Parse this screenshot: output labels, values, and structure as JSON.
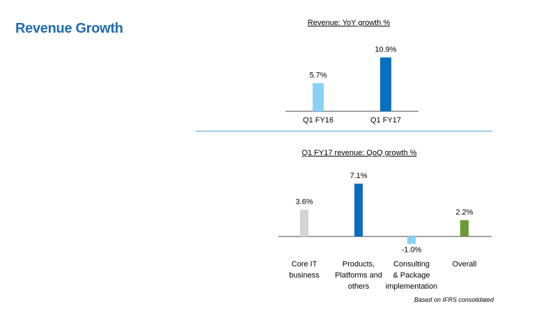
{
  "page": {
    "title": "Revenue Growth",
    "footnote": "Based on IFRS consolidated"
  },
  "chart_data": [
    {
      "type": "bar",
      "title": "Revenue: YoY growth %",
      "categories": [
        "Q1 FY16",
        "Q1 FY17"
      ],
      "values": [
        5.7,
        10.9
      ],
      "labels": [
        "5.7%",
        "10.9%"
      ],
      "colors": [
        "#87d1f7",
        "#0a6fc2"
      ],
      "xlabel": "",
      "ylabel": "",
      "ylim": [
        0,
        11
      ]
    },
    {
      "type": "bar",
      "title": "Q1 FY17 revenue: QoQ growth %",
      "categories": [
        [
          "Core IT",
          "business"
        ],
        [
          "Products,",
          "Platforms and",
          "others"
        ],
        [
          "Consulting",
          "& Package",
          "implementation"
        ],
        [
          "Overall"
        ]
      ],
      "values": [
        3.6,
        7.1,
        -1.0,
        2.2
      ],
      "labels": [
        "3.6%",
        "7.1%",
        "-1.0%",
        "2.2%"
      ],
      "colors": [
        "#d4d4d4",
        "#0a6fc2",
        "#87d1f7",
        "#6a9a37"
      ],
      "xlabel": "",
      "ylabel": "",
      "ylim": [
        -1.5,
        7.5
      ]
    }
  ]
}
